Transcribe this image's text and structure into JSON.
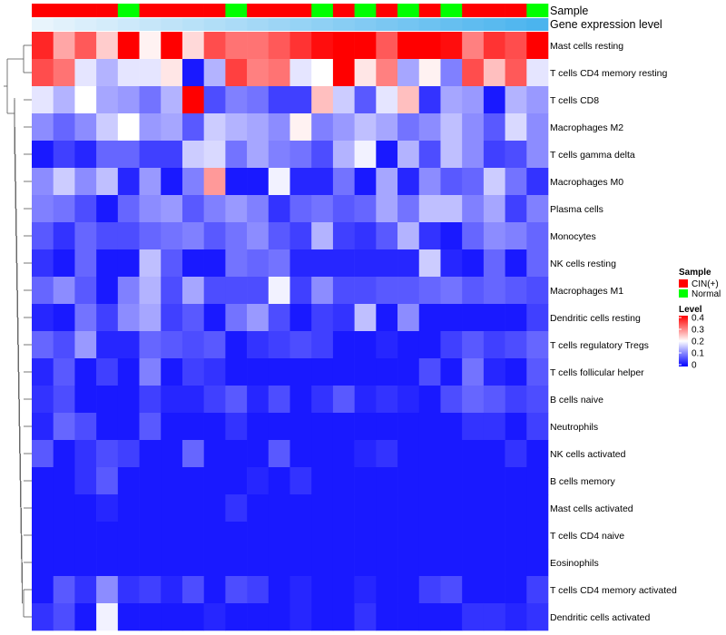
{
  "chart_data": {
    "type": "heatmap",
    "title": "",
    "annotation_labels": {
      "sample": "Sample",
      "gene_expression": "Gene expression level"
    },
    "columns": 24,
    "sample_annotation": [
      "CIN(+)",
      "CIN(+)",
      "CIN(+)",
      "CIN(+)",
      "Normal",
      "CIN(+)",
      "CIN(+)",
      "CIN(+)",
      "CIN(+)",
      "Normal",
      "CIN(+)",
      "CIN(+)",
      "CIN(+)",
      "Normal",
      "CIN(+)",
      "Normal",
      "CIN(+)",
      "Normal",
      "CIN(+)",
      "Normal",
      "CIN(+)",
      "CIN(+)",
      "CIN(+)",
      "Normal"
    ],
    "gene_expression_annotation": [
      0.02,
      0.04,
      0.06,
      0.08,
      0.1,
      0.12,
      0.14,
      0.16,
      0.18,
      0.2,
      0.22,
      0.24,
      0.26,
      0.28,
      0.3,
      0.32,
      0.34,
      0.36,
      0.38,
      0.4,
      0.42,
      0.44,
      0.46,
      0.48
    ],
    "rows": [
      {
        "label": "Mast cells resting",
        "values": [
          0.37,
          0.27,
          0.33,
          0.24,
          0.4,
          0.21,
          0.4,
          0.23,
          0.34,
          0.31,
          0.31,
          0.33,
          0.36,
          0.39,
          0.4,
          0.4,
          0.33,
          0.4,
          0.4,
          0.39,
          0.3,
          0.36,
          0.34,
          0.4
        ]
      },
      {
        "label": "T cells CD4 memory resting",
        "values": [
          0.34,
          0.31,
          0.18,
          0.14,
          0.18,
          0.18,
          0.22,
          0.02,
          0.14,
          0.35,
          0.3,
          0.31,
          0.18,
          0.2,
          0.4,
          0.22,
          0.3,
          0.13,
          0.21,
          0.1,
          0.34,
          0.25,
          0.33,
          0.18
        ]
      },
      {
        "label": "T cells CD8",
        "values": [
          0.18,
          0.14,
          0.2,
          0.13,
          0.12,
          0.09,
          0.14,
          0.4,
          0.06,
          0.1,
          0.09,
          0.05,
          0.05,
          0.25,
          0.16,
          0.07,
          0.18,
          0.25,
          0.04,
          0.13,
          0.12,
          0.02,
          0.14,
          0.12
        ]
      },
      {
        "label": "Macrophages M2",
        "values": [
          0.11,
          0.08,
          0.11,
          0.16,
          0.2,
          0.12,
          0.13,
          0.07,
          0.16,
          0.14,
          0.13,
          0.11,
          0.21,
          0.1,
          0.12,
          0.15,
          0.13,
          0.09,
          0.11,
          0.15,
          0.11,
          0.07,
          0.17,
          0.11
        ]
      },
      {
        "label": "T cells gamma delta",
        "values": [
          0.02,
          0.05,
          0.03,
          0.08,
          0.08,
          0.05,
          0.05,
          0.16,
          0.17,
          0.09,
          0.13,
          0.1,
          0.09,
          0.06,
          0.14,
          0.19,
          0.02,
          0.14,
          0.06,
          0.15,
          0.11,
          0.05,
          0.06,
          0.11
        ]
      },
      {
        "label": "Macrophages M0",
        "values": [
          0.11,
          0.16,
          0.11,
          0.15,
          0.03,
          0.12,
          0.02,
          0.1,
          0.28,
          0.02,
          0.02,
          0.19,
          0.03,
          0.03,
          0.09,
          0.02,
          0.13,
          0.03,
          0.11,
          0.07,
          0.08,
          0.16,
          0.09,
          0.04
        ]
      },
      {
        "label": "Plasma cells",
        "values": [
          0.1,
          0.09,
          0.06,
          0.02,
          0.08,
          0.11,
          0.12,
          0.07,
          0.1,
          0.12,
          0.1,
          0.04,
          0.08,
          0.09,
          0.07,
          0.08,
          0.13,
          0.09,
          0.15,
          0.15,
          0.1,
          0.13,
          0.05,
          0.1
        ]
      },
      {
        "label": "Monocytes",
        "values": [
          0.07,
          0.04,
          0.08,
          0.06,
          0.06,
          0.08,
          0.09,
          0.1,
          0.07,
          0.09,
          0.11,
          0.07,
          0.05,
          0.14,
          0.05,
          0.04,
          0.07,
          0.14,
          0.04,
          0.02,
          0.08,
          0.11,
          0.1,
          0.08
        ]
      },
      {
        "label": "NK cells resting",
        "values": [
          0.04,
          0.02,
          0.08,
          0.02,
          0.02,
          0.15,
          0.07,
          0.02,
          0.02,
          0.09,
          0.08,
          0.09,
          0.03,
          0.03,
          0.03,
          0.03,
          0.03,
          0.03,
          0.16,
          0.03,
          0.02,
          0.08,
          0.02,
          0.08
        ]
      },
      {
        "label": "Macrophages M1",
        "values": [
          0.08,
          0.11,
          0.07,
          0.02,
          0.1,
          0.14,
          0.06,
          0.13,
          0.06,
          0.06,
          0.06,
          0.19,
          0.05,
          0.11,
          0.06,
          0.06,
          0.07,
          0.07,
          0.08,
          0.09,
          0.07,
          0.08,
          0.07,
          0.06
        ]
      },
      {
        "label": "Dendritic cells resting",
        "values": [
          0.03,
          0.02,
          0.09,
          0.05,
          0.11,
          0.13,
          0.05,
          0.07,
          0.02,
          0.09,
          0.12,
          0.06,
          0.02,
          0.05,
          0.04,
          0.15,
          0.02,
          0.11,
          0.02,
          0.02,
          0.02,
          0.02,
          0.02,
          0.05
        ]
      },
      {
        "label": "T cells regulatory  Tregs",
        "values": [
          0.08,
          0.06,
          0.12,
          0.03,
          0.03,
          0.08,
          0.07,
          0.06,
          0.07,
          0.02,
          0.04,
          0.05,
          0.06,
          0.05,
          0.02,
          0.02,
          0.03,
          0.02,
          0.02,
          0.05,
          0.07,
          0.05,
          0.06,
          0.08
        ]
      },
      {
        "label": "T cells follicular helper",
        "values": [
          0.03,
          0.07,
          0.02,
          0.05,
          0.02,
          0.1,
          0.02,
          0.05,
          0.04,
          0.02,
          0.02,
          0.02,
          0.02,
          0.02,
          0.02,
          0.02,
          0.02,
          0.02,
          0.06,
          0.02,
          0.09,
          0.03,
          0.02,
          0.07
        ]
      },
      {
        "label": "B cells naive",
        "values": [
          0.04,
          0.06,
          0.02,
          0.02,
          0.02,
          0.05,
          0.03,
          0.03,
          0.05,
          0.07,
          0.03,
          0.06,
          0.02,
          0.04,
          0.07,
          0.03,
          0.04,
          0.03,
          0.02,
          0.06,
          0.08,
          0.07,
          0.05,
          0.06
        ]
      },
      {
        "label": "Neutrophils",
        "values": [
          0.03,
          0.08,
          0.06,
          0.02,
          0.02,
          0.07,
          0.02,
          0.02,
          0.02,
          0.04,
          0.02,
          0.02,
          0.02,
          0.02,
          0.02,
          0.02,
          0.02,
          0.02,
          0.02,
          0.02,
          0.04,
          0.04,
          0.02,
          0.05
        ]
      },
      {
        "label": "NK cells activated",
        "values": [
          0.07,
          0.02,
          0.04,
          0.06,
          0.05,
          0.02,
          0.02,
          0.08,
          0.02,
          0.02,
          0.02,
          0.07,
          0.02,
          0.02,
          0.02,
          0.03,
          0.04,
          0.02,
          0.02,
          0.02,
          0.02,
          0.02,
          0.04,
          0.02
        ]
      },
      {
        "label": "B cells memory",
        "values": [
          0.02,
          0.02,
          0.04,
          0.07,
          0.02,
          0.02,
          0.02,
          0.02,
          0.02,
          0.02,
          0.03,
          0.02,
          0.04,
          0.02,
          0.02,
          0.02,
          0.02,
          0.02,
          0.02,
          0.02,
          0.02,
          0.02,
          0.02,
          0.02
        ]
      },
      {
        "label": "Mast cells activated",
        "values": [
          0.02,
          0.02,
          0.02,
          0.03,
          0.02,
          0.02,
          0.02,
          0.02,
          0.02,
          0.04,
          0.02,
          0.02,
          0.02,
          0.02,
          0.02,
          0.02,
          0.02,
          0.02,
          0.02,
          0.02,
          0.02,
          0.02,
          0.02,
          0.02
        ]
      },
      {
        "label": "T cells CD4 naive",
        "values": [
          0.02,
          0.02,
          0.02,
          0.02,
          0.02,
          0.02,
          0.02,
          0.02,
          0.02,
          0.02,
          0.02,
          0.02,
          0.02,
          0.02,
          0.02,
          0.02,
          0.02,
          0.02,
          0.02,
          0.02,
          0.02,
          0.02,
          0.02,
          0.02
        ]
      },
      {
        "label": "Eosinophils",
        "values": [
          0.02,
          0.02,
          0.02,
          0.02,
          0.02,
          0.02,
          0.02,
          0.02,
          0.02,
          0.02,
          0.02,
          0.02,
          0.02,
          0.02,
          0.02,
          0.02,
          0.02,
          0.02,
          0.02,
          0.02,
          0.02,
          0.02,
          0.02,
          0.02
        ]
      },
      {
        "label": "T cells CD4 memory activated",
        "values": [
          0.02,
          0.07,
          0.04,
          0.11,
          0.04,
          0.05,
          0.03,
          0.06,
          0.02,
          0.06,
          0.05,
          0.02,
          0.03,
          0.02,
          0.02,
          0.03,
          0.02,
          0.02,
          0.05,
          0.06,
          0.02,
          0.02,
          0.02,
          0.05
        ]
      },
      {
        "label": "Dendritic cells activated",
        "values": [
          0.04,
          0.06,
          0.02,
          0.19,
          0.02,
          0.02,
          0.02,
          0.02,
          0.03,
          0.02,
          0.02,
          0.02,
          0.03,
          0.02,
          0.02,
          0.04,
          0.02,
          0.02,
          0.02,
          0.02,
          0.04,
          0.04,
          0.03,
          0.04
        ]
      }
    ],
    "dendrogram_order": "Mast cells resting, T cells CD4 memory resting (top pair); remaining rows nested in a single clade",
    "legend_sample": {
      "title": "Sample",
      "entries": [
        {
          "label": "CIN(+)",
          "color": "#ff0000"
        },
        {
          "label": "Normal",
          "color": "#00ff00"
        }
      ]
    },
    "legend_level": {
      "title": "Level",
      "range": [
        0,
        0.4
      ],
      "ticks": [
        {
          "value": 0.4,
          "label": "0.4"
        },
        {
          "value": 0.3,
          "label": "0.3"
        },
        {
          "value": 0.2,
          "label": "0.2"
        },
        {
          "value": 0.1,
          "label": "0.1"
        },
        {
          "value": 0.0,
          "label": "0"
        }
      ]
    },
    "colors": {
      "low": "#0000ff",
      "mid": "#ffffff",
      "high": "#ff0000",
      "cin": "#ff0000",
      "normal": "#00ff00",
      "annotation_light": "#e8f4fc",
      "annotation_dark": "#4bb4ee"
    }
  }
}
